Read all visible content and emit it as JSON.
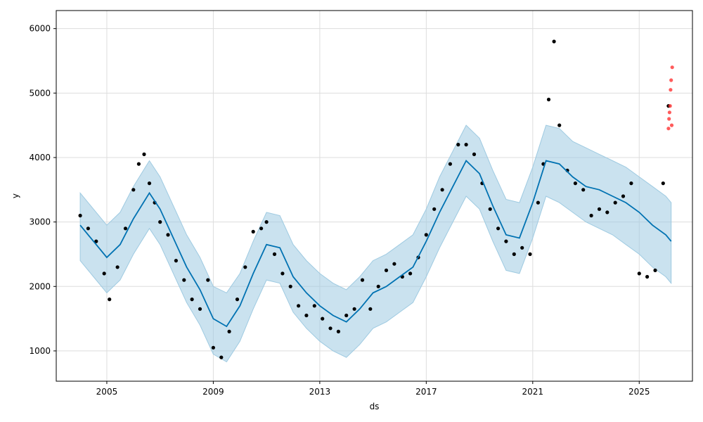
{
  "chart_data": {
    "type": "scatter",
    "title": "",
    "xlabel": "ds",
    "ylabel": "y",
    "xlim": [
      2003.1,
      2027.0
    ],
    "ylim": [
      530,
      6280
    ],
    "grid": true,
    "x_ticks": [
      {
        "value": 2005,
        "label": "2005"
      },
      {
        "value": 2009,
        "label": "2009"
      },
      {
        "value": 2013,
        "label": "2013"
      },
      {
        "value": 2017,
        "label": "2017"
      },
      {
        "value": 2021,
        "label": "2021"
      },
      {
        "value": 2025,
        "label": "2025"
      }
    ],
    "y_ticks": [
      {
        "value": 1000,
        "label": "1000"
      },
      {
        "value": 2000,
        "label": "2000"
      },
      {
        "value": 3000,
        "label": "3000"
      },
      {
        "value": 4000,
        "label": "4000"
      },
      {
        "value": 5000,
        "label": "5000"
      },
      {
        "value": 6000,
        "label": "6000"
      }
    ],
    "colors": {
      "observed": "#000000",
      "future_points": "#ff3333",
      "forecast_line": "#0072b2",
      "interval_band": "#9ecae1"
    },
    "forecast": {
      "x": [
        2004.0,
        2004.5,
        2005.0,
        2005.5,
        2006.0,
        2006.6,
        2007.0,
        2007.5,
        2008.0,
        2008.5,
        2009.0,
        2009.5,
        2010.0,
        2010.5,
        2011.0,
        2011.5,
        2012.0,
        2012.5,
        2013.0,
        2013.5,
        2014.0,
        2014.5,
        2015.0,
        2015.5,
        2016.0,
        2016.5,
        2017.0,
        2017.5,
        2018.0,
        2018.5,
        2019.0,
        2019.5,
        2020.0,
        2020.5,
        2021.0,
        2021.5,
        2022.0,
        2022.5,
        2023.0,
        2023.5,
        2024.0,
        2024.5,
        2025.0,
        2025.5,
        2026.0,
        2026.2
      ],
      "yhat": [
        2950,
        2700,
        2450,
        2650,
        3050,
        3450,
        3200,
        2750,
        2300,
        1950,
        1500,
        1380,
        1700,
        2200,
        2650,
        2600,
        2150,
        1900,
        1700,
        1550,
        1450,
        1650,
        1900,
        2000,
        2150,
        2300,
        2700,
        3150,
        3550,
        3950,
        3750,
        3250,
        2800,
        2750,
        3300,
        3950,
        3900,
        3700,
        3550,
        3500,
        3400,
        3300,
        3150,
        2950,
        2800,
        2700
      ],
      "lower": [
        2400,
        2150,
        1900,
        2100,
        2500,
        2900,
        2650,
        2200,
        1750,
        1400,
        950,
        830,
        1150,
        1650,
        2100,
        2050,
        1600,
        1350,
        1150,
        1000,
        900,
        1100,
        1350,
        1450,
        1600,
        1750,
        2150,
        2600,
        3000,
        3400,
        3200,
        2700,
        2250,
        2200,
        2750,
        3400,
        3300,
        3150,
        3000,
        2900,
        2800,
        2650,
        2500,
        2300,
        2150,
        2050
      ],
      "upper": [
        3450,
        3200,
        2950,
        3150,
        3550,
        3950,
        3700,
        3250,
        2800,
        2450,
        2000,
        1900,
        2200,
        2700,
        3150,
        3100,
        2650,
        2400,
        2200,
        2050,
        1950,
        2150,
        2400,
        2500,
        2650,
        2800,
        3200,
        3700,
        4100,
        4500,
        4300,
        3800,
        3350,
        3300,
        3850,
        4500,
        4450,
        4250,
        4150,
        4050,
        3950,
        3850,
        3700,
        3550,
        3400,
        3300
      ]
    },
    "series": [
      {
        "name": "",
        "x": [
          2004.0,
          2004.3,
          2004.6,
          2004.9,
          2005.1,
          2005.4,
          2005.7,
          2006.0,
          2006.2,
          2006.4,
          2006.6,
          2006.8,
          2007.0,
          2007.3,
          2007.6,
          2007.9,
          2008.2,
          2008.5,
          2008.8,
          2009.0,
          2009.3,
          2009.6,
          2009.9,
          2010.2,
          2010.5,
          2010.8,
          2011.0,
          2011.3,
          2011.6,
          2011.9,
          2012.2,
          2012.5,
          2012.8,
          2013.1,
          2013.4,
          2013.7,
          2014.0,
          2014.3,
          2014.6,
          2014.9,
          2015.2,
          2015.5,
          2015.8,
          2016.1,
          2016.4,
          2016.7,
          2017.0,
          2017.3,
          2017.6,
          2017.9,
          2018.2,
          2018.5,
          2018.8,
          2019.1,
          2019.4,
          2019.7,
          2020.0,
          2020.3,
          2020.6,
          2020.9,
          2021.2,
          2021.4,
          2021.6,
          2021.8,
          2022.0,
          2022.3,
          2022.6,
          2022.9,
          2023.2,
          2023.5,
          2023.8,
          2024.1,
          2024.4,
          2024.7,
          2025.0,
          2025.3,
          2025.6,
          2025.9,
          2026.1
        ],
        "y": [
          3100,
          2900,
          2700,
          2200,
          1800,
          2300,
          2900,
          3500,
          3900,
          4050,
          3600,
          3300,
          3000,
          2800,
          2400,
          2100,
          1800,
          1650,
          2100,
          1050,
          900,
          1300,
          1800,
          2300,
          2850,
          2900,
          3000,
          2500,
          2200,
          2000,
          1700,
          1550,
          1700,
          1500,
          1350,
          1300,
          1550,
          1650,
          2100,
          1650,
          2000,
          2250,
          2350,
          2150,
          2200,
          2450,
          2800,
          3200,
          3500,
          3900,
          4200,
          4200,
          4050,
          3600,
          3200,
          2900,
          2700,
          2500,
          2600,
          2500,
          3300,
          3900,
          4900,
          5800,
          4500,
          3800,
          3600,
          3500,
          3100,
          3200,
          3150,
          3300,
          3400,
          3600,
          2200,
          2150,
          2250,
          3600,
          4800
        ]
      },
      {
        "name": "",
        "x": [
          2026.1,
          2026.12,
          2026.14,
          2026.16,
          2026.18,
          2026.2,
          2026.22,
          2026.24
        ],
        "y": [
          4450,
          4600,
          4700,
          4800,
          5050,
          5200,
          4500,
          5400
        ]
      }
    ]
  }
}
